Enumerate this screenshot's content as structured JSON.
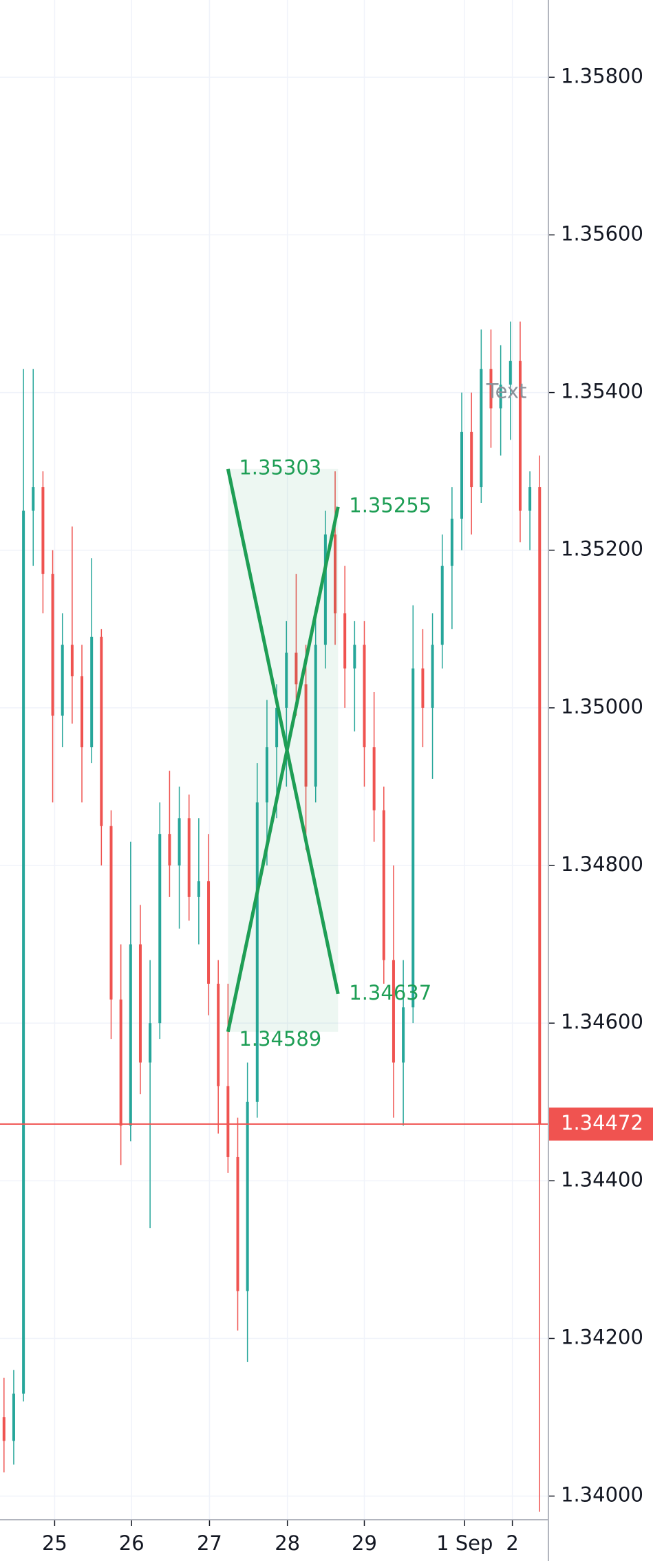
{
  "chart_data": {
    "type": "ohlc",
    "xlim": [
      -0.41,
      55.9
    ],
    "ylim": [
      1.3397,
      1.35898
    ],
    "xticks": [
      {
        "value": 5.2,
        "label": "25"
      },
      {
        "value": 13.1,
        "label": "26"
      },
      {
        "value": 21.1,
        "label": "27"
      },
      {
        "value": 29.1,
        "label": "28"
      },
      {
        "value": 37.0,
        "label": "29"
      },
      {
        "value": 47.3,
        "label": "1 Sep"
      },
      {
        "value": 52.2,
        "label": "2"
      }
    ],
    "yticks": [
      {
        "value": 1.358,
        "label": "1.35800"
      },
      {
        "value": 1.356,
        "label": "1.35600"
      },
      {
        "value": 1.354,
        "label": "1.35400"
      },
      {
        "value": 1.352,
        "label": "1.35200"
      },
      {
        "value": 1.35,
        "label": "1.35000"
      },
      {
        "value": 1.348,
        "label": "1.34800"
      },
      {
        "value": 1.346,
        "label": "1.34600"
      },
      {
        "value": 1.344,
        "label": "1.34400"
      },
      {
        "value": 1.342,
        "label": "1.34200"
      },
      {
        "value": 1.34,
        "label": "1.34000"
      }
    ],
    "grid": true,
    "up_color": "#26a69a",
    "down_color": "#ef5350",
    "open": [
      1.341,
      1.3407,
      1.3413,
      1.3525,
      1.3528,
      1.3517,
      1.3499,
      1.3508,
      1.3504,
      1.3495,
      1.3509,
      1.3485,
      1.3463,
      1.3447,
      1.347,
      1.3455,
      1.346,
      1.3484,
      1.348,
      1.3486,
      1.3476,
      1.3478,
      1.3465,
      1.3452,
      1.3443,
      1.3426,
      1.345,
      1.3488,
      1.3495,
      1.35,
      1.3507,
      1.3503,
      1.349,
      1.3508,
      1.3522,
      1.3512,
      1.3505,
      1.3508,
      1.3495,
      1.3487,
      1.3468,
      1.3455,
      1.3462,
      1.3505,
      1.35,
      1.3508,
      1.3518,
      1.3524,
      1.3535,
      1.3528,
      1.3543,
      1.3538,
      1.3541,
      1.3544,
      1.3525,
      1.3528
    ],
    "high": [
      1.3415,
      1.3416,
      1.3543,
      1.3543,
      1.353,
      1.352,
      1.3512,
      1.3523,
      1.3508,
      1.3519,
      1.351,
      1.3487,
      1.347,
      1.3483,
      1.3475,
      1.3468,
      1.3488,
      1.3492,
      1.349,
      1.3489,
      1.3486,
      1.3484,
      1.3468,
      1.3465,
      1.3448,
      1.3455,
      1.3493,
      1.3501,
      1.3503,
      1.3511,
      1.3517,
      1.3508,
      1.3512,
      1.3525,
      1.353,
      1.3518,
      1.3511,
      1.3511,
      1.3502,
      1.349,
      1.348,
      1.3468,
      1.3513,
      1.351,
      1.3512,
      1.3522,
      1.3528,
      1.354,
      1.354,
      1.3548,
      1.3548,
      1.3546,
      1.3549,
      1.3549,
      1.353,
      1.3532
    ],
    "low": [
      1.3403,
      1.3404,
      1.3412,
      1.3518,
      1.3512,
      1.3488,
      1.3495,
      1.3498,
      1.3488,
      1.3493,
      1.348,
      1.3458,
      1.3442,
      1.3445,
      1.3451,
      1.3434,
      1.3458,
      1.3476,
      1.3472,
      1.3473,
      1.347,
      1.3461,
      1.3446,
      1.3441,
      1.3421,
      1.3417,
      1.3448,
      1.348,
      1.3486,
      1.349,
      1.3499,
      1.3482,
      1.3488,
      1.3505,
      1.3508,
      1.35,
      1.3497,
      1.349,
      1.3483,
      1.3465,
      1.3448,
      1.3447,
      1.346,
      1.3495,
      1.3491,
      1.3505,
      1.351,
      1.352,
      1.3522,
      1.3526,
      1.3533,
      1.3532,
      1.3534,
      1.3521,
      1.352,
      1.3398
    ],
    "close": [
      1.3407,
      1.3413,
      1.3525,
      1.3528,
      1.3517,
      1.3499,
      1.3508,
      1.3504,
      1.3495,
      1.3509,
      1.3485,
      1.3463,
      1.3447,
      1.347,
      1.3455,
      1.346,
      1.3484,
      1.348,
      1.3486,
      1.3476,
      1.3478,
      1.3465,
      1.3452,
      1.3443,
      1.3426,
      1.345,
      1.3488,
      1.3495,
      1.35,
      1.3507,
      1.3503,
      1.349,
      1.3508,
      1.3522,
      1.3512,
      1.3505,
      1.3508,
      1.3495,
      1.3487,
      1.3468,
      1.3455,
      1.3462,
      1.3505,
      1.35,
      1.3508,
      1.3518,
      1.3524,
      1.3535,
      1.3528,
      1.3543,
      1.3538,
      1.3541,
      1.3544,
      1.3525,
      1.3528,
      1.34472
    ],
    "last_color": "#f05350",
    "drawing_color": "#1e9e55",
    "drawing_lines": [
      {
        "x": [
          23,
          34.3
        ],
        "y": [
          1.35303,
          1.34637
        ]
      },
      {
        "x": [
          23,
          34.3
        ],
        "y": [
          1.34589,
          1.35255
        ]
      }
    ],
    "text_note": {
      "text": "Text",
      "x": 51.6,
      "y": 1.354
    }
  }
}
